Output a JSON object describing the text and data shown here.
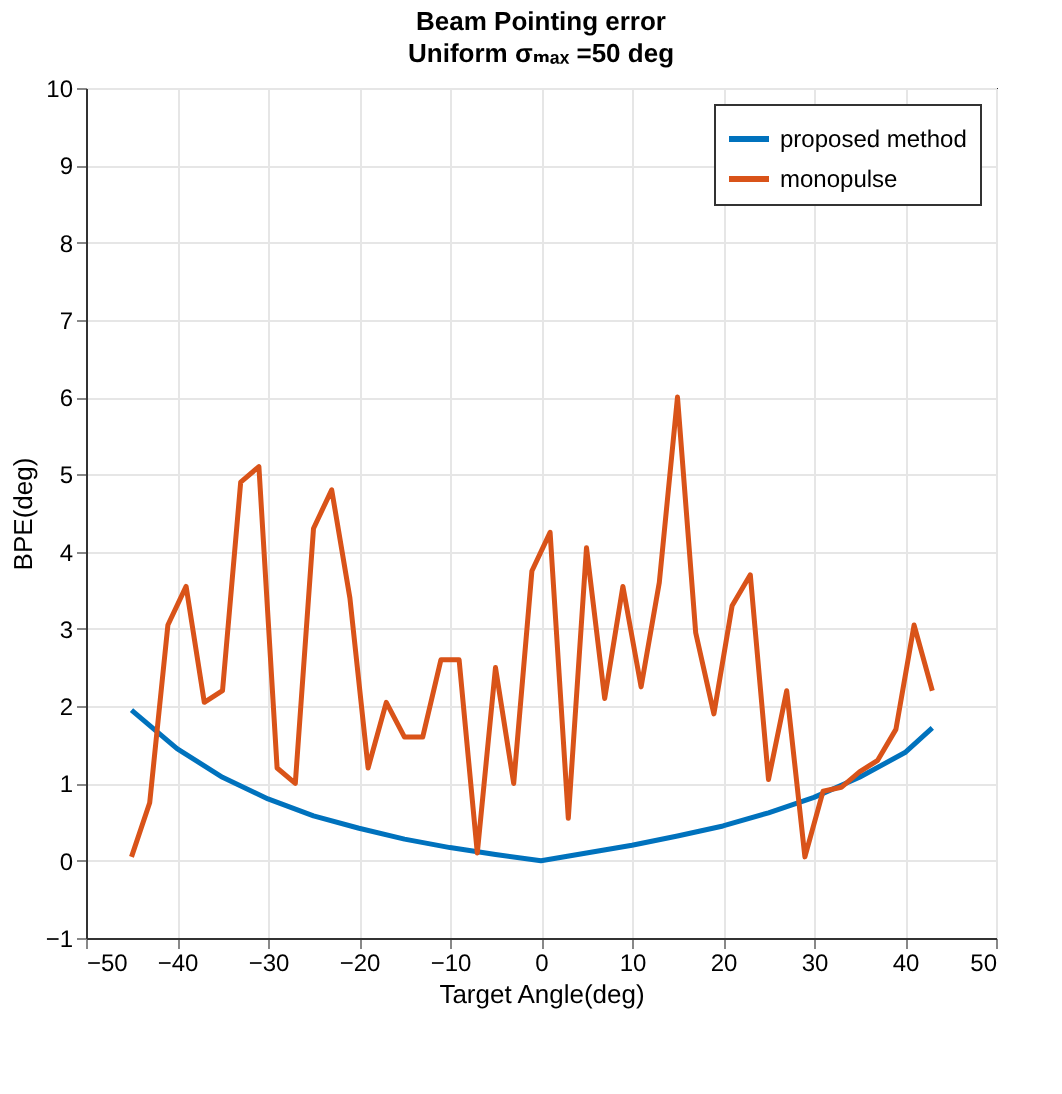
{
  "chart_data": {
    "type": "line",
    "title": "Beam Pointing error",
    "subtitle": "Uniform σₘₐₓ =50 deg",
    "xlabel": "Target Angle(deg)",
    "ylabel": "BPE(deg)",
    "xlim": [
      -50,
      50
    ],
    "xticks": [
      -50,
      -40,
      -30,
      -20,
      -10,
      0,
      10,
      20,
      30,
      40,
      50
    ],
    "ylim": [
      -1,
      10
    ],
    "yticks": [
      -1,
      0,
      1,
      2,
      3,
      4,
      5,
      6,
      7,
      8,
      9,
      10
    ],
    "grid": true,
    "legend": "top right",
    "marker": "none",
    "line_style": "solid",
    "series": [
      {
        "name": "proposed method",
        "color": "#0072bd",
        "x": [
          -45,
          -40,
          -35,
          -30,
          -25,
          -20,
          -15,
          -10,
          -5,
          0,
          5,
          10,
          15,
          20,
          25,
          30,
          35,
          40,
          43
        ],
        "values": [
          1.95,
          1.45,
          1.08,
          0.8,
          0.58,
          0.42,
          0.28,
          0.17,
          0.08,
          0.0,
          0.1,
          0.2,
          0.32,
          0.45,
          0.62,
          0.82,
          1.08,
          1.4,
          1.72
        ]
      },
      {
        "name": "monopulse",
        "color": "#d95319",
        "x": [
          -45,
          -43,
          -41,
          -39,
          -37,
          -35,
          -33,
          -31,
          -29,
          -27,
          -25,
          -23,
          -21,
          -19,
          -17,
          -15,
          -13,
          -11,
          -9,
          -7,
          -5,
          -3,
          -1,
          1,
          3,
          5,
          7,
          9,
          11,
          13,
          15,
          17,
          19,
          21,
          23,
          25,
          27,
          29,
          31,
          33,
          35,
          37,
          39,
          41,
          43
        ],
        "values": [
          0.05,
          0.75,
          3.05,
          3.55,
          2.05,
          2.2,
          4.9,
          5.1,
          1.2,
          1.0,
          4.3,
          4.8,
          3.4,
          1.2,
          2.05,
          1.6,
          1.6,
          2.6,
          2.6,
          0.1,
          2.5,
          1.0,
          3.75,
          4.25,
          0.55,
          4.05,
          2.1,
          3.55,
          2.25,
          3.6,
          6.0,
          2.95,
          1.9,
          3.3,
          3.7,
          1.05,
          2.2,
          0.05,
          0.9,
          0.95,
          1.15,
          1.3,
          1.7,
          3.05,
          2.2
        ]
      }
    ]
  }
}
